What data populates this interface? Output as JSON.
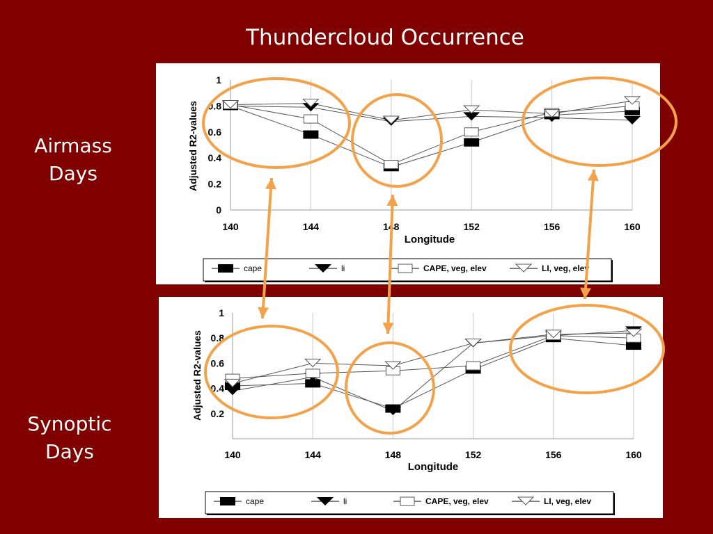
{
  "slide": {
    "title": "Thundercloud Occurrence",
    "labels": [
      "Airmass\nDays",
      "Synoptic\nDays"
    ]
  },
  "colors": {
    "background": "#800000",
    "annotation": "#F4A24A",
    "series_line": "#555555",
    "grid": "#C8C8C8"
  },
  "chart_data": [
    {
      "type": "line",
      "xlabel": "Longitude",
      "ylabel": "Adjusted R2-values",
      "x": [
        140,
        144,
        148,
        152,
        156,
        160
      ],
      "ylim": [
        0,
        1
      ],
      "yticks": [
        0,
        0.2,
        0.4,
        0.6,
        0.8,
        1
      ],
      "yticklabels": [
        "0",
        "0.2",
        "0.4",
        "0.6",
        "0.8",
        "1"
      ],
      "grid": true,
      "legend_position": "bottom",
      "series": [
        {
          "name": "cape",
          "marker": "filled-square",
          "values": [
            0.8,
            0.58,
            0.33,
            0.52,
            0.73,
            0.76
          ]
        },
        {
          "name": "li",
          "marker": "filled-triangle-down",
          "values": [
            0.8,
            0.79,
            0.68,
            0.72,
            0.71,
            0.69
          ]
        },
        {
          "name": "CAPE, veg, elev",
          "marker": "open-square",
          "values": [
            0.81,
            0.7,
            0.35,
            0.6,
            0.75,
            0.8
          ]
        },
        {
          "name": "LI, veg, elev",
          "marker": "open-triangle-down",
          "values": [
            0.81,
            0.82,
            0.69,
            0.77,
            0.74,
            0.84
          ]
        }
      ]
    },
    {
      "type": "line",
      "xlabel": "Longitude",
      "ylabel": "Adjusted R2-values",
      "x": [
        140,
        144,
        148,
        152,
        156,
        160
      ],
      "ylim": [
        0,
        1
      ],
      "yticks": [
        0.2,
        0.4,
        0.6,
        0.8,
        1
      ],
      "yticklabels": [
        "0.2",
        "0.4",
        "0.6",
        "0.8",
        "1"
      ],
      "grid": true,
      "legend_position": "bottom",
      "series": [
        {
          "name": "cape",
          "marker": "filled-square",
          "values": [
            0.42,
            0.44,
            0.24,
            0.55,
            0.8,
            0.74
          ]
        },
        {
          "name": "li",
          "marker": "filled-triangle-down",
          "values": [
            0.38,
            0.49,
            0.22,
            0.76,
            0.82,
            0.86
          ]
        },
        {
          "name": "CAPE, veg, elev",
          "marker": "open-square",
          "values": [
            0.48,
            0.52,
            0.54,
            0.58,
            0.82,
            0.8
          ]
        },
        {
          "name": "LI, veg, elev",
          "marker": "open-triangle-down",
          "values": [
            0.44,
            0.6,
            0.58,
            0.76,
            0.83,
            0.84
          ]
        }
      ]
    }
  ]
}
